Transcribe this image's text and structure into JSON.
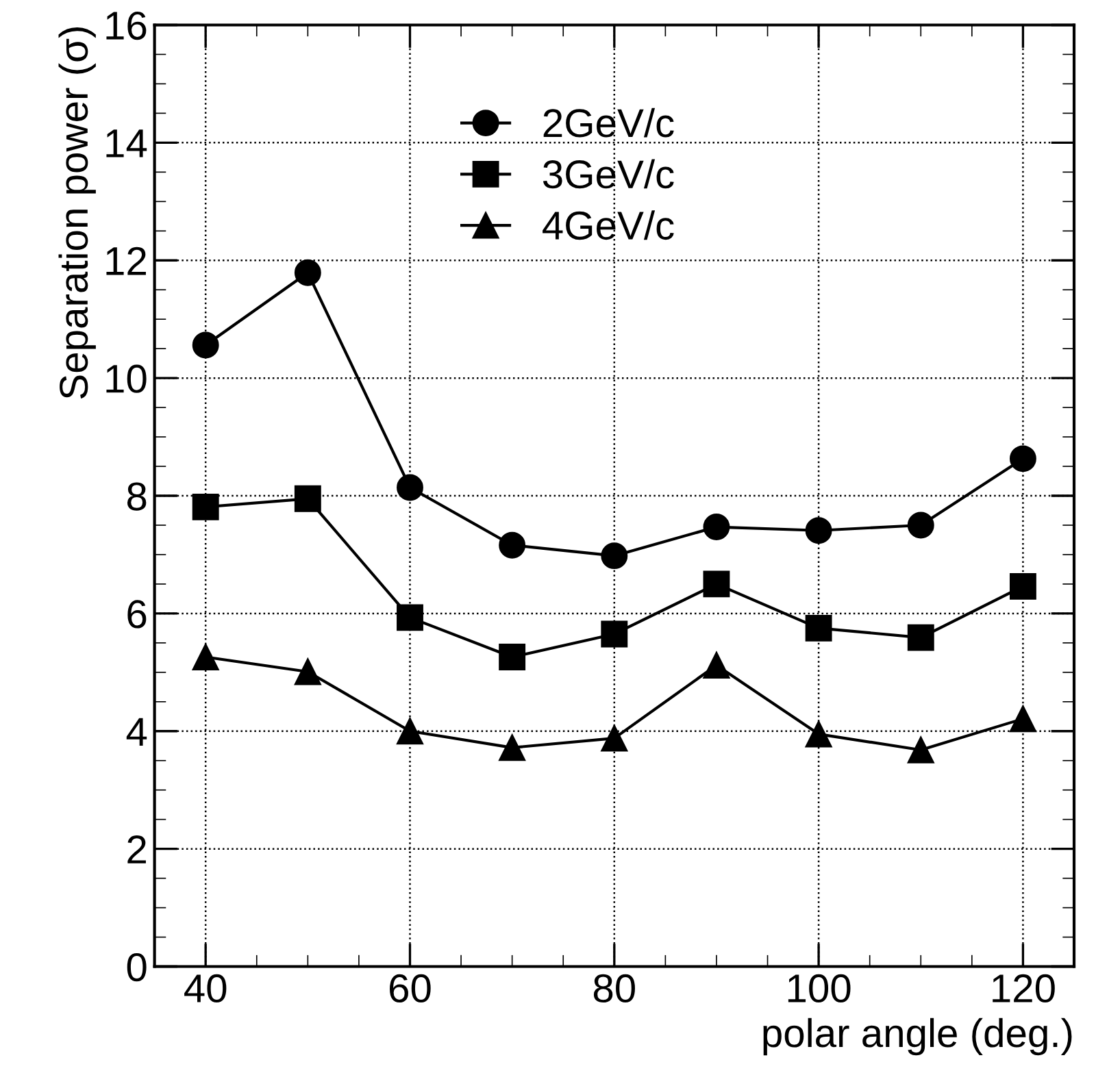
{
  "chart_data": {
    "type": "line",
    "xlabel": "polar angle (deg.)",
    "ylabel": "Separation power (σ)",
    "x": [
      40,
      50,
      60,
      70,
      80,
      90,
      100,
      110,
      120
    ],
    "series": [
      {
        "name": "2GeV/c",
        "color": "#000000",
        "marker": "circle",
        "values": [
          10.56,
          11.79,
          8.14,
          7.16,
          6.98,
          7.47,
          7.41,
          7.5,
          8.63
        ]
      },
      {
        "name": "3GeV/c",
        "color": "#000000",
        "marker": "square",
        "values": [
          7.81,
          7.95,
          5.93,
          5.26,
          5.65,
          6.5,
          5.75,
          5.59,
          6.46
        ]
      },
      {
        "name": "4GeV/c",
        "color": "#000000",
        "marker": "triangle",
        "values": [
          5.26,
          5.01,
          4.0,
          3.72,
          3.88,
          5.12,
          3.95,
          3.68,
          4.21
        ]
      }
    ],
    "xlim": [
      35,
      125
    ],
    "xticks": [
      40,
      60,
      80,
      100,
      120
    ],
    "ylim": [
      0,
      16
    ],
    "yticks": [
      0,
      2,
      4,
      6,
      8,
      10,
      12,
      14,
      16
    ],
    "grid": true,
    "legend": "top",
    "line_style": "solid"
  }
}
